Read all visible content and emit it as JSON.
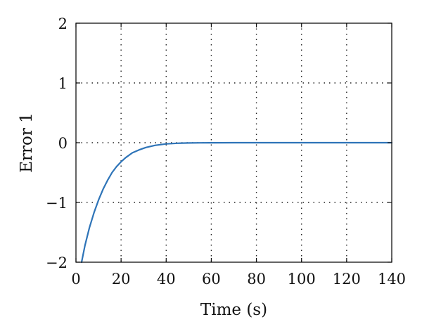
{
  "chart_data": {
    "type": "line",
    "title": "",
    "xlabel": "Time (s)",
    "ylabel": "Error 1",
    "xlim": [
      0,
      140
    ],
    "ylim": [
      -2,
      2
    ],
    "xticks": [
      0,
      20,
      40,
      60,
      80,
      100,
      120,
      140
    ],
    "yticks": [
      -2,
      -1,
      0,
      1,
      2
    ],
    "xtick_labels": [
      "0",
      "20",
      "40",
      "60",
      "80",
      "100",
      "120",
      "140"
    ],
    "ytick_labels": [
      "−2",
      "−1",
      "0",
      "1",
      "2"
    ],
    "grid": true,
    "grid_style": "dotted",
    "series": [
      {
        "color": "#2e74b8",
        "x": [
          2.5,
          4,
          6,
          8,
          10,
          12,
          14,
          16,
          18,
          20,
          22,
          25,
          28,
          31,
          35,
          40,
          45,
          50,
          55,
          60,
          70,
          80,
          100,
          120,
          140
        ],
        "y": [
          -2.0,
          -1.72,
          -1.42,
          -1.17,
          -0.96,
          -0.78,
          -0.63,
          -0.5,
          -0.4,
          -0.32,
          -0.25,
          -0.17,
          -0.12,
          -0.08,
          -0.045,
          -0.02,
          -0.01,
          -0.005,
          -0.002,
          -0.001,
          0.0,
          0.0,
          0.0,
          0.0,
          0.0
        ]
      }
    ]
  }
}
